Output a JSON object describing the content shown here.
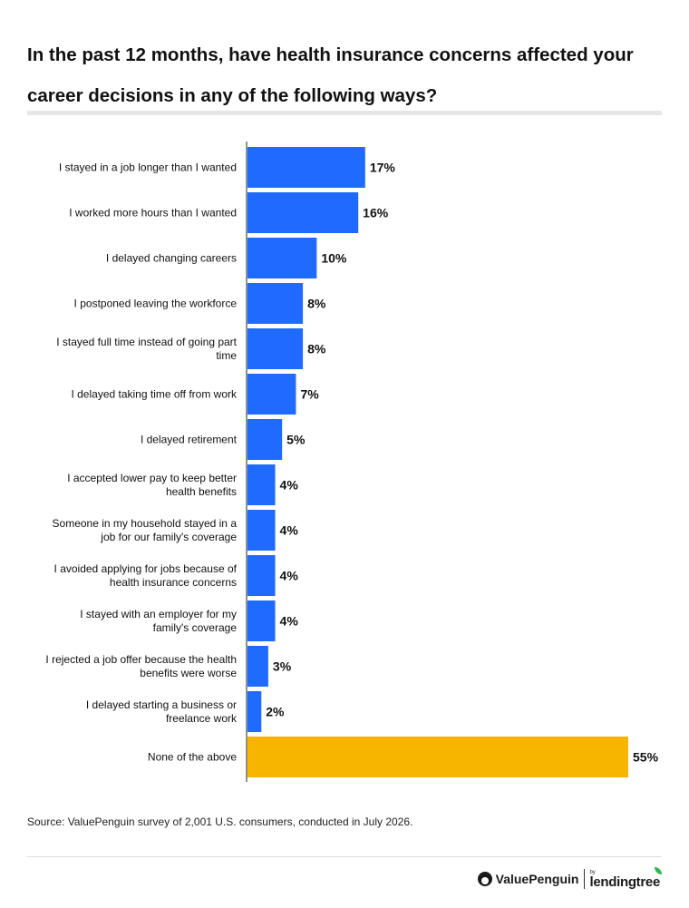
{
  "title": "In the past 12 months, have health insurance concerns affected your career decisions in any of the following ways?",
  "source": "Source: ValuePenguin survey of 2,001 U.S. consumers, conducted in July 2026.",
  "brand": {
    "valuepenguin": "ValuePenguin",
    "by": "by",
    "lendingtree": "lendingtree"
  },
  "colors": {
    "primary_bar": "#1f6bff",
    "highlight_bar": "#f7b500",
    "axis": "#222222"
  },
  "chart_data": {
    "type": "bar",
    "orientation": "horizontal",
    "categories": [
      [
        "I stayed in a job longer than I wanted"
      ],
      [
        "I worked more hours than I wanted"
      ],
      [
        "I delayed changing careers"
      ],
      [
        "I postponed leaving the workforce"
      ],
      [
        "I stayed full time instead of going part",
        "time"
      ],
      [
        "I delayed taking time off from work"
      ],
      [
        "I delayed retirement"
      ],
      [
        "I accepted lower pay to keep better",
        "health benefits"
      ],
      [
        "Someone in my household stayed in a",
        "job for our family's coverage"
      ],
      [
        "I avoided applying for jobs because of",
        "health insurance concerns"
      ],
      [
        "I stayed with an employer for my",
        "family's coverage"
      ],
      [
        "I rejected a job offer because the health",
        "benefits were worse"
      ],
      [
        "I delayed starting a business or",
        "freelance work"
      ],
      [
        "None of the above"
      ]
    ],
    "values": [
      17,
      16,
      10,
      8,
      8,
      7,
      5,
      4,
      4,
      4,
      4,
      3,
      2,
      55
    ],
    "value_labels": [
      "17%",
      "16%",
      "10%",
      "8%",
      "8%",
      "7%",
      "5%",
      "4%",
      "4%",
      "4%",
      "4%",
      "3%",
      "2%",
      "55%"
    ],
    "highlight_index": 13,
    "xlim": [
      0,
      55
    ],
    "grid": false,
    "legend": "none"
  }
}
